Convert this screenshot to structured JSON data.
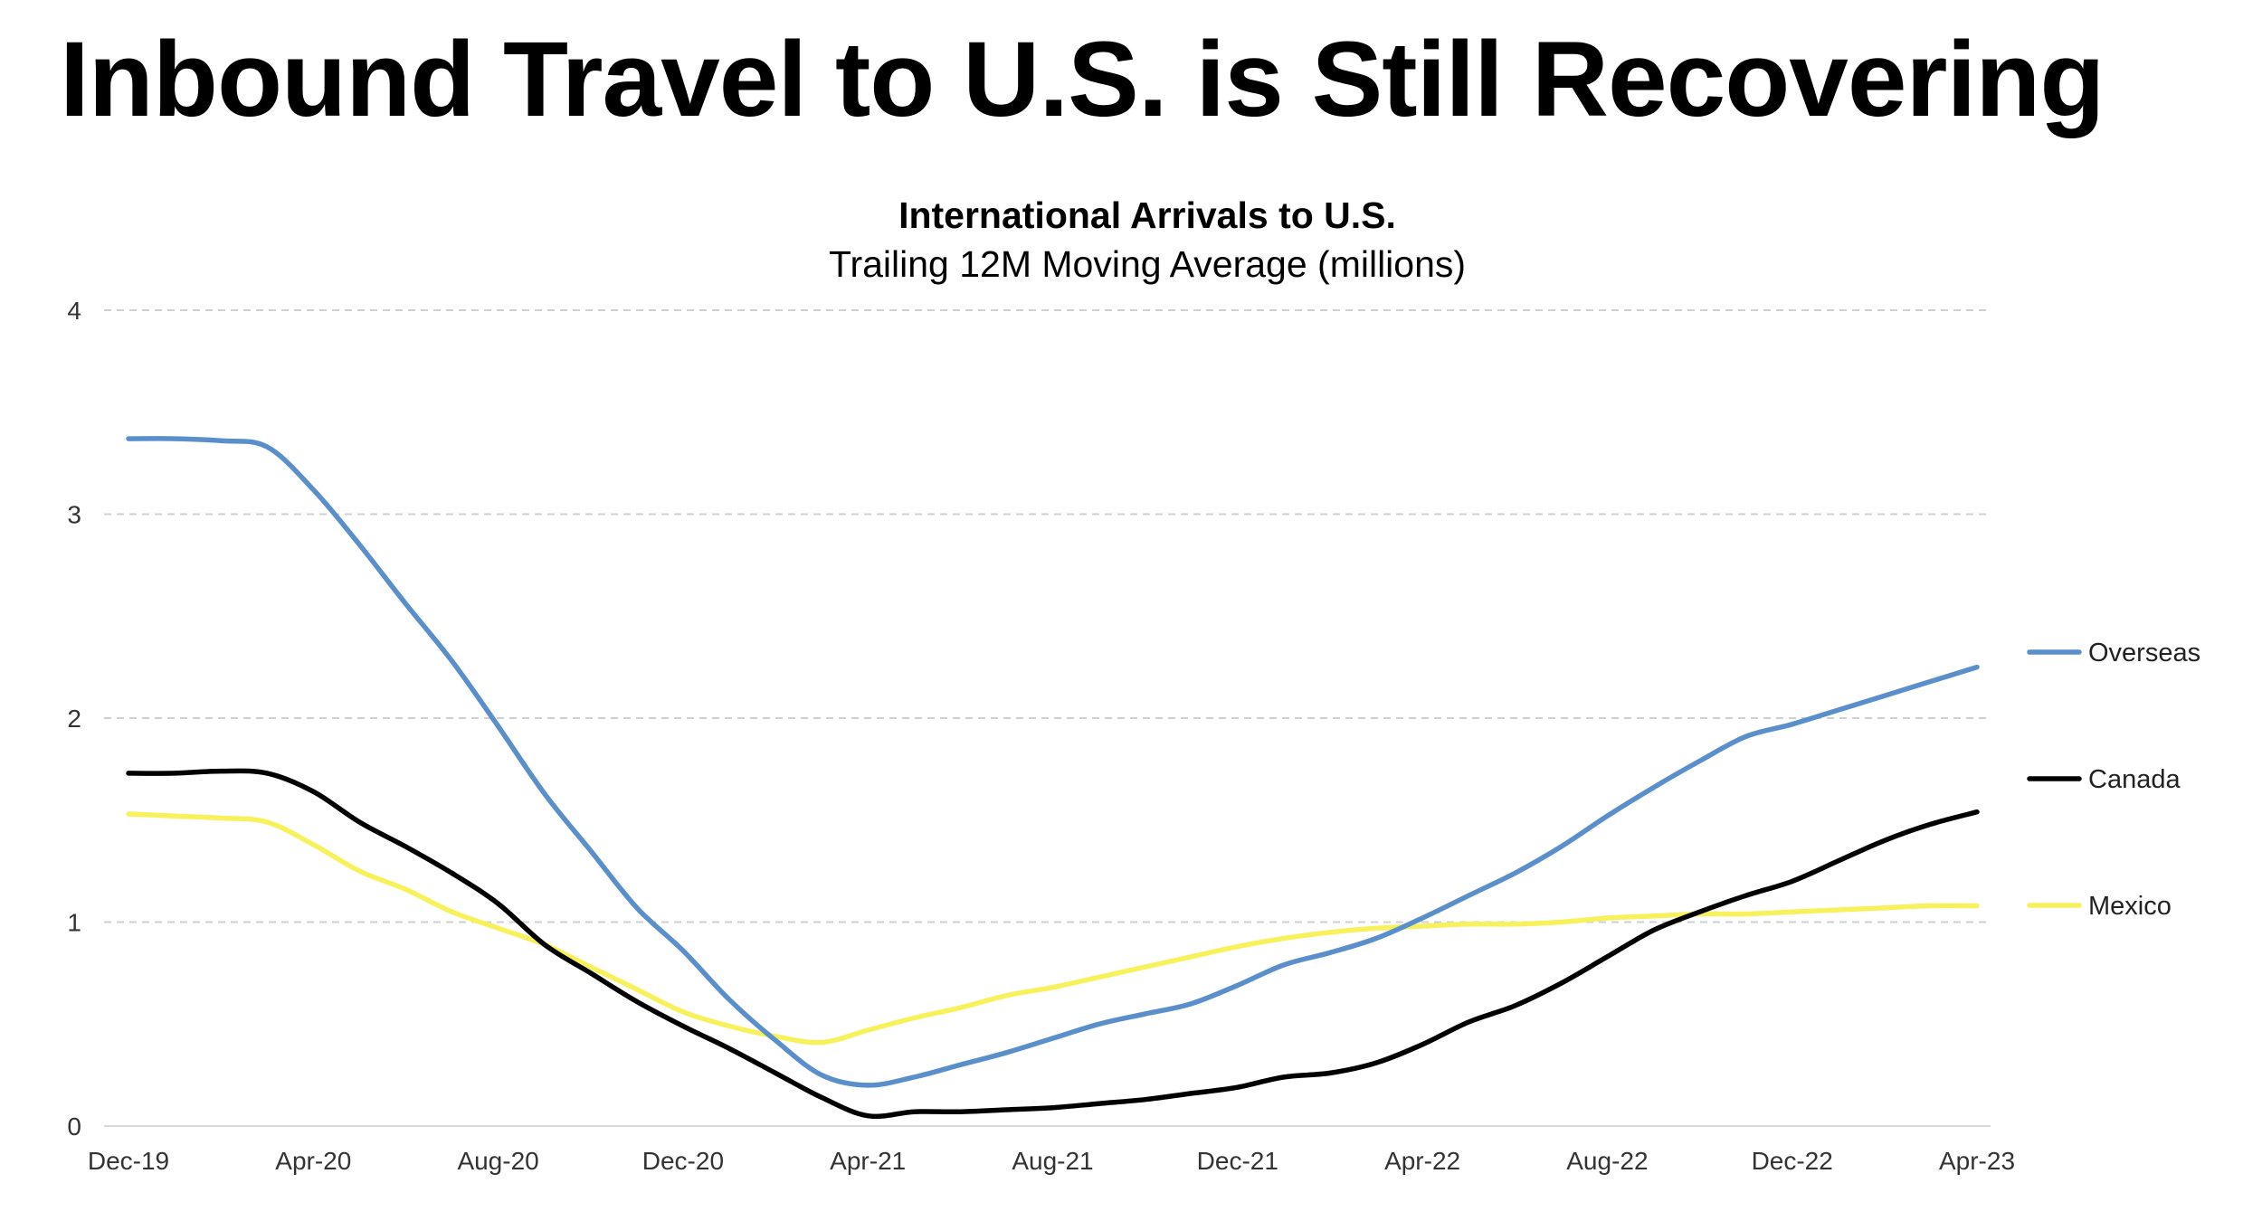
{
  "headline": "Inbound Travel to U.S. is Still Recovering",
  "chart_data": {
    "type": "line",
    "title": "International Arrivals to U.S.",
    "subtitle": "Trailing 12M Moving Average (millions)",
    "xlabel": "",
    "ylabel": "",
    "ylim": [
      0,
      4
    ],
    "yticks": [
      "0",
      "1",
      "2",
      "3",
      "4"
    ],
    "grid": true,
    "legend_position": "right",
    "x": [
      "Dec-19",
      "Jan-20",
      "Feb-20",
      "Mar-20",
      "Apr-20",
      "May-20",
      "Jun-20",
      "Jul-20",
      "Aug-20",
      "Sep-20",
      "Oct-20",
      "Nov-20",
      "Dec-20",
      "Jan-21",
      "Feb-21",
      "Mar-21",
      "Apr-21",
      "May-21",
      "Jun-21",
      "Jul-21",
      "Aug-21",
      "Sep-21",
      "Oct-21",
      "Nov-21",
      "Dec-21",
      "Jan-22",
      "Feb-22",
      "Mar-22",
      "Apr-22",
      "May-22",
      "Jun-22",
      "Jul-22",
      "Aug-22",
      "Sep-22",
      "Oct-22",
      "Nov-22",
      "Dec-22",
      "Jan-23",
      "Feb-23",
      "Mar-23",
      "Apr-23"
    ],
    "xtick_labels": [
      "Dec-19",
      "Apr-20",
      "Aug-20",
      "Dec-20",
      "Apr-21",
      "Aug-21",
      "Dec-21",
      "Apr-22",
      "Aug-22",
      "Dec-22",
      "Apr-23"
    ],
    "series": [
      {
        "name": "Overseas",
        "color": "#5b8fcb",
        "values": [
          3.37,
          3.37,
          3.36,
          3.33,
          3.12,
          2.85,
          2.56,
          2.28,
          1.96,
          1.63,
          1.35,
          1.07,
          0.86,
          0.62,
          0.42,
          0.25,
          0.2,
          0.24,
          0.3,
          0.36,
          0.43,
          0.5,
          0.55,
          0.6,
          0.69,
          0.79,
          0.85,
          0.92,
          1.02,
          1.13,
          1.24,
          1.37,
          1.52,
          1.66,
          1.79,
          1.91,
          1.97,
          2.04,
          2.11,
          2.18,
          2.25
        ]
      },
      {
        "name": "Canada",
        "color": "#000000",
        "values": [
          1.73,
          1.73,
          1.74,
          1.73,
          1.64,
          1.49,
          1.37,
          1.24,
          1.09,
          0.89,
          0.75,
          0.61,
          0.49,
          0.38,
          0.26,
          0.14,
          0.05,
          0.07,
          0.07,
          0.08,
          0.09,
          0.11,
          0.13,
          0.16,
          0.19,
          0.24,
          0.26,
          0.31,
          0.4,
          0.51,
          0.59,
          0.7,
          0.83,
          0.96,
          1.05,
          1.13,
          1.2,
          1.3,
          1.4,
          1.48,
          1.54
        ]
      },
      {
        "name": "Mexico",
        "color": "#f7f15c",
        "values": [
          1.53,
          1.52,
          1.51,
          1.49,
          1.38,
          1.25,
          1.16,
          1.05,
          0.97,
          0.89,
          0.78,
          0.67,
          0.56,
          0.49,
          0.44,
          0.41,
          0.47,
          0.53,
          0.58,
          0.64,
          0.68,
          0.73,
          0.78,
          0.83,
          0.88,
          0.92,
          0.95,
          0.97,
          0.98,
          0.99,
          0.99,
          1.0,
          1.02,
          1.03,
          1.04,
          1.04,
          1.05,
          1.06,
          1.07,
          1.08,
          1.08
        ]
      }
    ]
  }
}
